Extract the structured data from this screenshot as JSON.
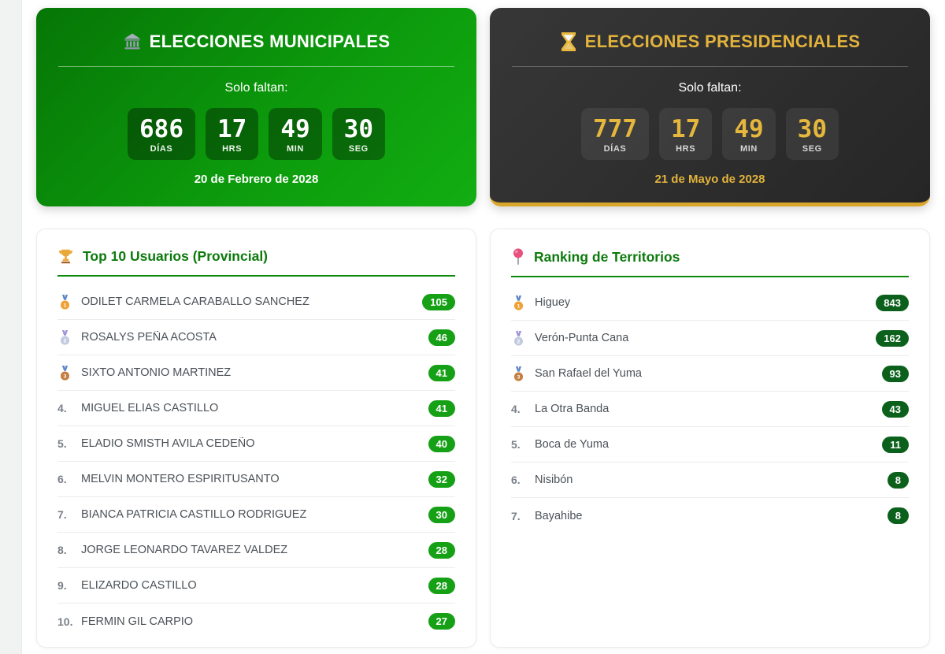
{
  "page": {
    "background": "#ffffff",
    "left_strip_color": "#f1f2f2",
    "accent_green": "#0c8a0c",
    "accent_gold": "#e2b33c"
  },
  "countdown_cards": [
    {
      "icon": "bank-icon",
      "title": "ELECCIONES MUNICIPALES",
      "subtitle": "Solo faltan:",
      "units": [
        {
          "value": "686",
          "label": "DÍAS"
        },
        {
          "value": "17",
          "label": "HRS"
        },
        {
          "value": "49",
          "label": "MIN"
        },
        {
          "value": "30",
          "label": "SEG"
        }
      ],
      "date": "20 de Febrero de 2028",
      "card_color": "#0c990c",
      "text_color": "#ffffff"
    },
    {
      "icon": "hourglass-icon",
      "title": "ELECCIONES PRESIDENCIALES",
      "subtitle": "Solo faltan:",
      "units": [
        {
          "value": "777",
          "label": "DÍAS"
        },
        {
          "value": "17",
          "label": "HRS"
        },
        {
          "value": "49",
          "label": "MIN"
        },
        {
          "value": "30",
          "label": "SEG"
        }
      ],
      "date": "21 de Mayo de 2028",
      "card_color": "#2e2e2e",
      "text_color": "#e2b33c"
    }
  ],
  "rankings": [
    {
      "icon": "trophy-icon",
      "title": "Top 10 Usuarios (Provincial)",
      "badge_color": "#16a016",
      "items": [
        {
          "rank": "1",
          "medal": "gold",
          "name": "ODILET CARMELA CARABALLO SANCHEZ",
          "score": "105"
        },
        {
          "rank": "2",
          "medal": "silver",
          "name": "ROSALYS PEÑA ACOSTA",
          "score": "46"
        },
        {
          "rank": "3",
          "medal": "bronze",
          "name": "SIXTO ANTONIO MARTINEZ",
          "score": "41"
        },
        {
          "rank": "4.",
          "medal": null,
          "name": "MIGUEL ELIAS CASTILLO",
          "score": "41"
        },
        {
          "rank": "5.",
          "medal": null,
          "name": "ELADIO SMISTH AVILA CEDEÑO",
          "score": "40"
        },
        {
          "rank": "6.",
          "medal": null,
          "name": "MELVIN MONTERO ESPIRITUSANTO",
          "score": "32"
        },
        {
          "rank": "7.",
          "medal": null,
          "name": "BIANCA PATRICIA CASTILLO RODRIGUEZ",
          "score": "30"
        },
        {
          "rank": "8.",
          "medal": null,
          "name": "JORGE LEONARDO TAVAREZ VALDEZ",
          "score": "28"
        },
        {
          "rank": "9.",
          "medal": null,
          "name": "ELIZARDO CASTILLO",
          "score": "28"
        },
        {
          "rank": "10.",
          "medal": null,
          "name": "FERMIN GIL CARPIO",
          "score": "27"
        }
      ]
    },
    {
      "icon": "pin-icon",
      "title": "Ranking de Territorios",
      "badge_color": "#0b611b",
      "items": [
        {
          "rank": "1",
          "medal": "gold",
          "name": "Higuey",
          "score": "843"
        },
        {
          "rank": "2",
          "medal": "silver",
          "name": "Verón-Punta Cana",
          "score": "162"
        },
        {
          "rank": "3",
          "medal": "bronze",
          "name": "San Rafael del Yuma",
          "score": "93"
        },
        {
          "rank": "4.",
          "medal": null,
          "name": "La Otra Banda",
          "score": "43"
        },
        {
          "rank": "5.",
          "medal": null,
          "name": "Boca de Yuma",
          "score": "11"
        },
        {
          "rank": "6.",
          "medal": null,
          "name": "Nisibón",
          "score": "8"
        },
        {
          "rank": "7.",
          "medal": null,
          "name": "Bayahibe",
          "score": "8"
        }
      ]
    }
  ]
}
